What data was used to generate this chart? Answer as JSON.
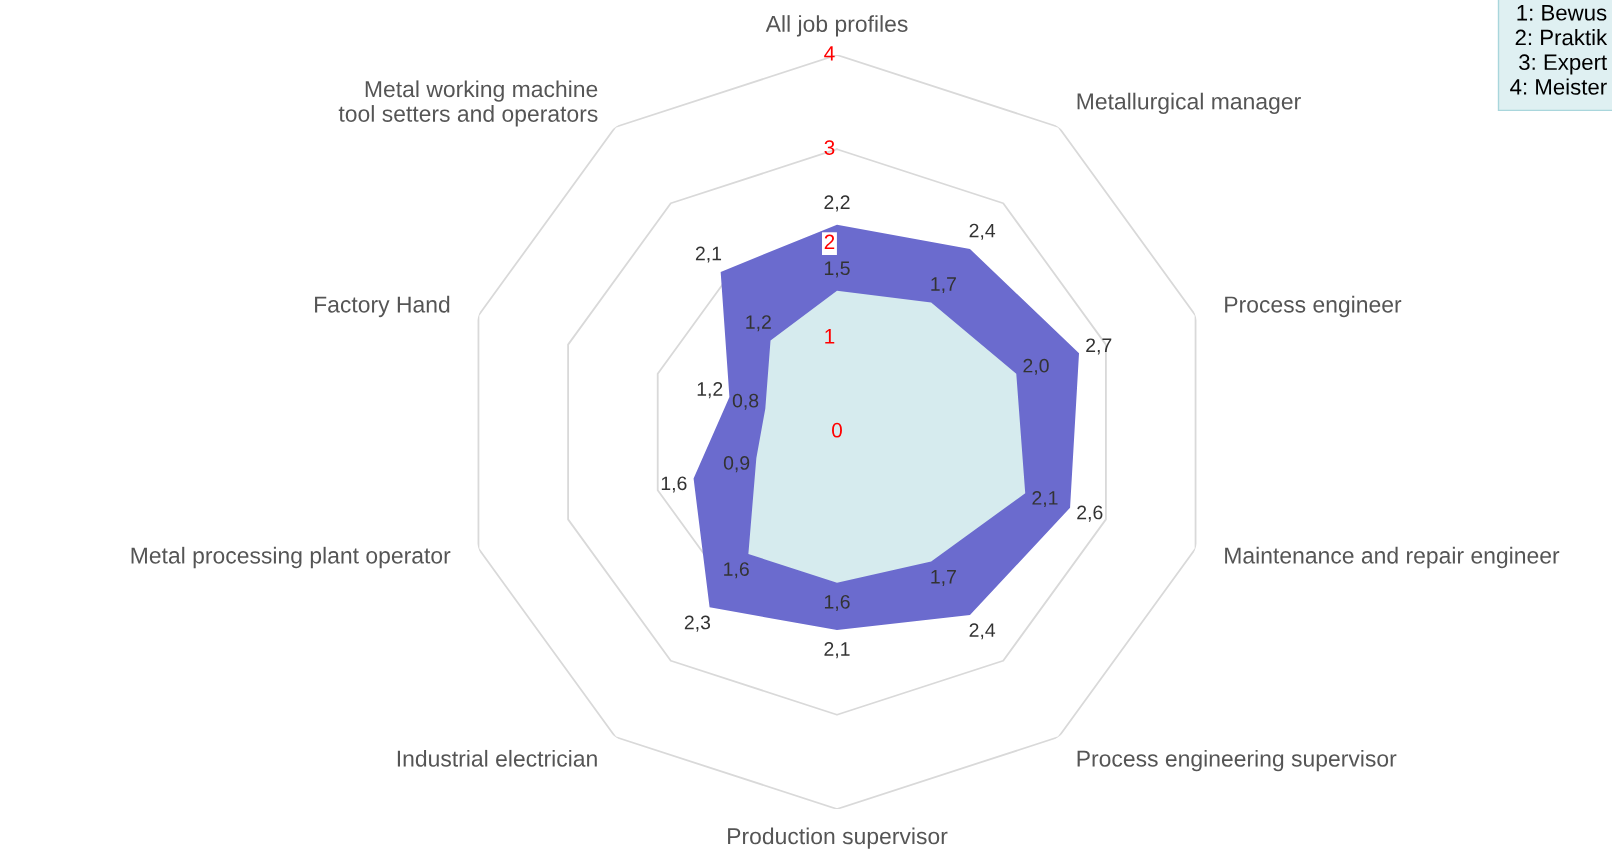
{
  "chart_data": {
    "type": "radar",
    "categories": [
      "All job profiles",
      "Metallurgical manager",
      "Process engineer",
      "Maintenance and repair engineer",
      "Process engineering supervisor",
      "Production supervisor",
      "Industrial electrician",
      "Metal processing plant operator",
      "Factory Hand",
      "Metal working machine tool setters and operators"
    ],
    "series": [
      {
        "color": "#6b6bce",
        "values": [
          2.2,
          2.4,
          2.7,
          2.6,
          2.4,
          2.1,
          2.3,
          1.6,
          1.2,
          2.1
        ],
        "value_labels": [
          "2,2",
          "2,4",
          "2,7",
          "2,6",
          "2,4",
          "2,1",
          "2,3",
          "1,6",
          "1,2",
          "2,1"
        ]
      },
      {
        "color": "#d6ebee",
        "values": [
          1.5,
          1.7,
          2.0,
          2.1,
          1.7,
          1.6,
          1.6,
          0.9,
          0.8,
          1.2
        ],
        "value_labels": [
          "1,5",
          "1,7",
          "2,0",
          "2,1",
          "1,7",
          "1,6",
          "1,6",
          "0,9",
          "0,8",
          "1,2"
        ]
      }
    ],
    "ylim": [
      0,
      4
    ],
    "yticks": [
      0,
      1,
      2,
      3,
      4
    ],
    "grid": true,
    "legend": false,
    "annotations": [
      "1: Bewus",
      "2: Praktik",
      "3: Expert",
      "4: Meister"
    ]
  }
}
